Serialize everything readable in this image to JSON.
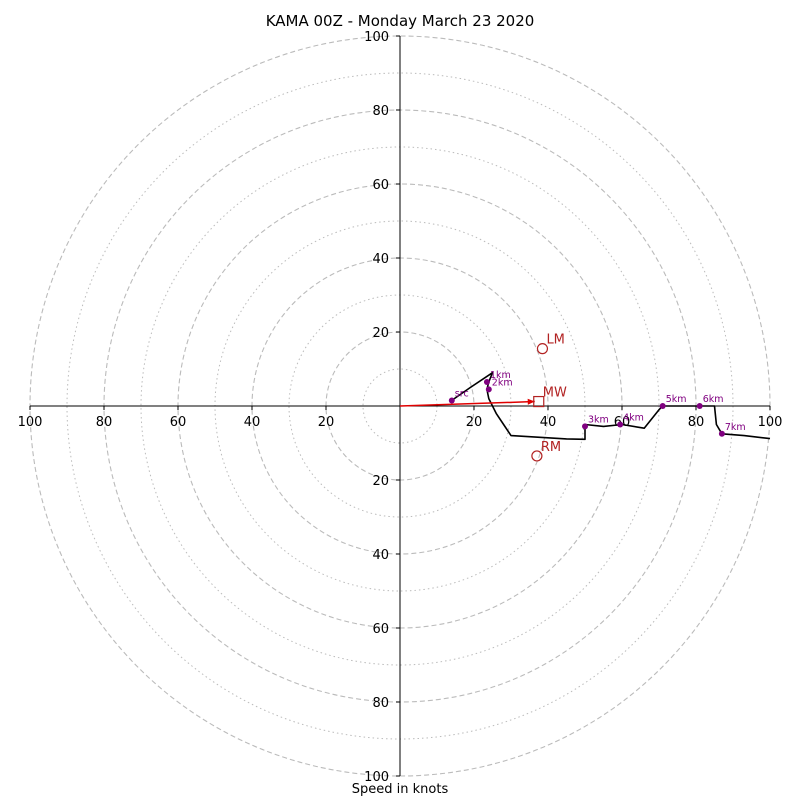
{
  "chart_data": {
    "type": "scatter",
    "title": "KAMA 00Z - Monday March 23 2020",
    "xlabel": "Speed in knots",
    "xlim": [
      -100,
      100
    ],
    "ylim": [
      -100,
      100
    ],
    "ring_major": [
      20,
      40,
      60,
      80,
      100
    ],
    "ring_minor": [
      10,
      30,
      50,
      70,
      90
    ],
    "x_tick_values": [
      -100,
      -80,
      -60,
      -40,
      -20,
      20,
      40,
      60,
      80,
      100
    ],
    "x_tick_labels": [
      "100",
      "80",
      "60",
      "40",
      "20",
      "20",
      "40",
      "60",
      "80",
      "100"
    ],
    "y_tick_values": [
      100,
      80,
      60,
      40,
      20,
      -20,
      -40,
      -60,
      -80,
      -100
    ],
    "y_tick_labels": [
      "100",
      "80",
      "60",
      "40",
      "20",
      "20",
      "40",
      "60",
      "80",
      "100"
    ],
    "hodograph": {
      "name": "",
      "color": "#000000",
      "points": [
        [
          14,
          1.5
        ],
        [
          19,
          5
        ],
        [
          25,
          9
        ],
        [
          24,
          6.5
        ],
        [
          23.5,
          4.5
        ],
        [
          24,
          2
        ],
        [
          25,
          0
        ],
        [
          26,
          -2
        ],
        [
          28,
          -5
        ],
        [
          30,
          -8
        ],
        [
          35,
          -8.3
        ],
        [
          40,
          -8.6
        ],
        [
          45,
          -8.9
        ],
        [
          50,
          -9
        ],
        [
          50,
          -7
        ],
        [
          50,
          -5
        ],
        [
          55,
          -5.5
        ],
        [
          60,
          -5
        ],
        [
          66,
          -6
        ],
        [
          70,
          -1
        ],
        [
          71,
          0
        ],
        [
          75,
          0
        ],
        [
          81,
          0
        ],
        [
          85,
          0
        ],
        [
          85.5,
          -5
        ],
        [
          87,
          -7.5
        ],
        [
          93,
          -8
        ],
        [
          100,
          -8.8
        ]
      ]
    },
    "height_markers": [
      {
        "label": "src",
        "x": 14,
        "y": 1.5
      },
      {
        "label": "1km",
        "x": 23.5,
        "y": 6.5
      },
      {
        "label": "2km",
        "x": 24,
        "y": 4.5
      },
      {
        "label": "3km",
        "x": 50,
        "y": -5.5
      },
      {
        "label": "4km",
        "x": 59.5,
        "y": -5
      },
      {
        "label": "5km",
        "x": 71,
        "y": 0
      },
      {
        "label": "6km",
        "x": 81,
        "y": 0
      },
      {
        "label": "7km",
        "x": 87,
        "y": -7.5
      }
    ],
    "storm_motion": [
      {
        "label": "LM",
        "x": 38.5,
        "y": 15.5,
        "marker": "circle"
      },
      {
        "label": "MW",
        "x": 37.5,
        "y": 1.2,
        "marker": "square"
      },
      {
        "label": "RM",
        "x": 37,
        "y": -13.5,
        "marker": "circle"
      }
    ],
    "mean_wind_vector": {
      "x0": 0,
      "y0": 0,
      "x1": 37.5,
      "y1": 1.2
    },
    "colors": {
      "hodograph": "#000000",
      "markers": "#800080",
      "storm_motion": "#b22222",
      "mean_wind_arrow": "#e00000",
      "grid": "#bbbbbb"
    },
    "grid": true
  }
}
